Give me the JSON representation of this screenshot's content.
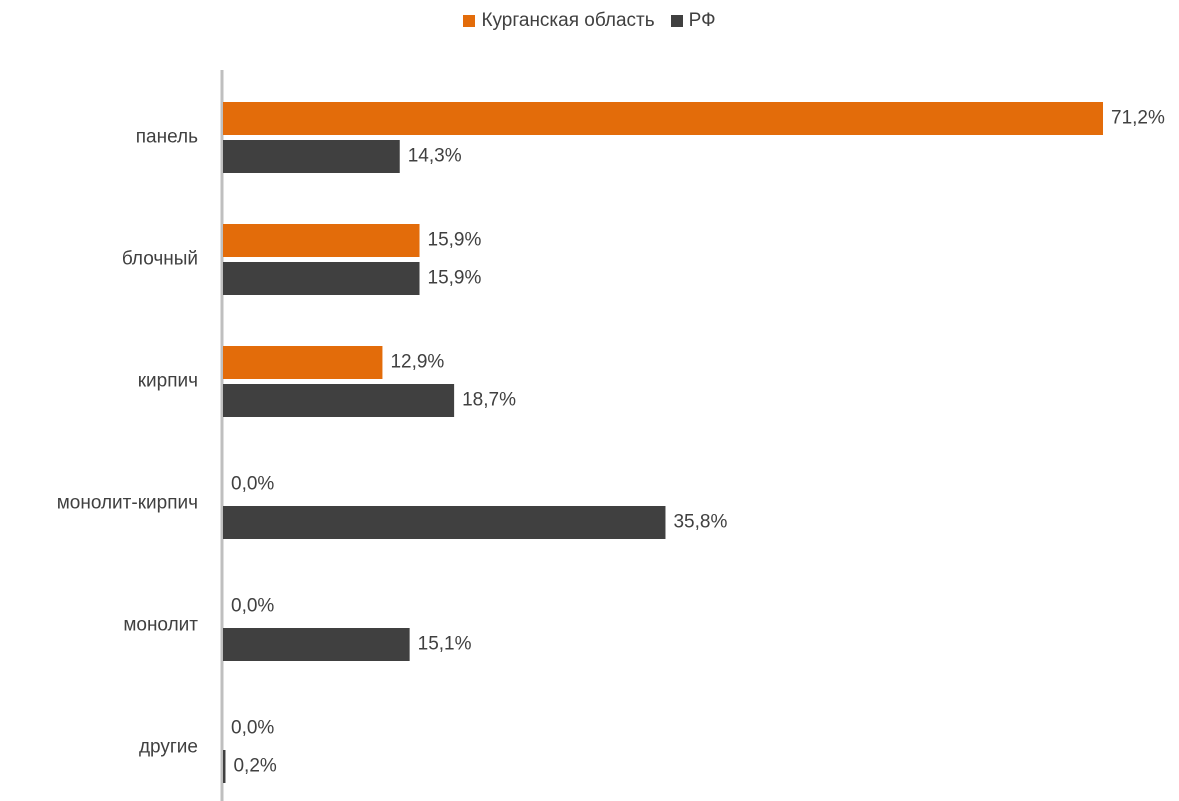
{
  "chart_data": {
    "type": "bar",
    "orientation": "horizontal",
    "categories": [
      "панель",
      "блочный",
      "кирпич",
      "монолит-кирпич",
      "монолит",
      "другие"
    ],
    "series": [
      {
        "name": "Курганская область",
        "color": "#E36C0A",
        "values": [
          71.2,
          15.9,
          12.9,
          0.0,
          0.0,
          0.0
        ],
        "labels": [
          "71,2%",
          "15,9%",
          "12,9%",
          "0,0%",
          "0,0%",
          "0,0%"
        ]
      },
      {
        "name": "РФ",
        "color": "#404040",
        "values": [
          14.3,
          15.9,
          18.7,
          35.8,
          15.1,
          0.2
        ],
        "labels": [
          "14,3%",
          "15,9%",
          "18,7%",
          "35,8%",
          "15,1%",
          "0,2%"
        ]
      }
    ],
    "xlim": [
      0,
      71.2
    ],
    "grid": false,
    "legend_position": "top"
  }
}
